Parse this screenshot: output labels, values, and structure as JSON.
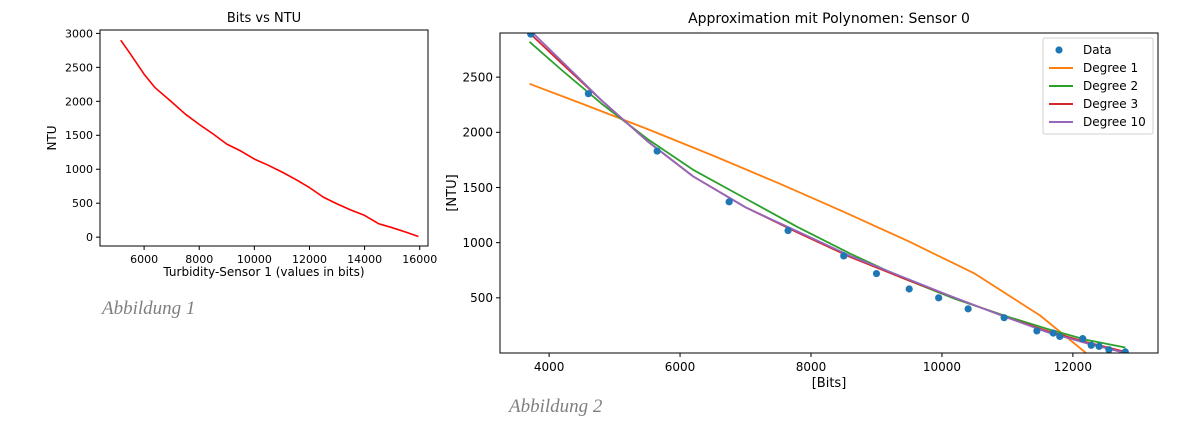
{
  "captions": {
    "fig1": "Abbildung 1",
    "fig2": "Abbildung 2"
  },
  "chart_data": [
    {
      "type": "line",
      "title": "Bits vs NTU",
      "xlabel": "Turbidity-Sensor 1 (values in bits)",
      "ylabel": "NTU",
      "xlim": [
        4400,
        16300
      ],
      "ylim": [
        -130,
        3050
      ],
      "xticks": [
        6000,
        8000,
        10000,
        12000,
        14000,
        16000
      ],
      "yticks": [
        0,
        500,
        1000,
        1500,
        2000,
        2500,
        3000
      ],
      "grid": false,
      "series": [
        {
          "color": "#ff0000",
          "x": [
            5150,
            5500,
            6000,
            6400,
            7000,
            7500,
            8000,
            8500,
            9000,
            9500,
            10000,
            10500,
            11000,
            11500,
            12000,
            12500,
            13000,
            13500,
            14000,
            14500,
            15000,
            15500,
            15950
          ],
          "y": [
            2900,
            2700,
            2400,
            2200,
            1990,
            1810,
            1660,
            1520,
            1370,
            1270,
            1150,
            1060,
            960,
            850,
            730,
            590,
            490,
            400,
            320,
            200,
            140,
            75,
            10
          ]
        }
      ]
    },
    {
      "type": "line",
      "title": "Approximation mit Polynomen: Sensor 0",
      "xlabel": "[Bits]",
      "ylabel": "[NTU]",
      "xlim": [
        3250,
        13300
      ],
      "ylim": [
        0,
        2900
      ],
      "xticks": [
        4000,
        6000,
        8000,
        10000,
        12000
      ],
      "yticks": [
        500,
        1000,
        1500,
        2000,
        2500
      ],
      "grid": false,
      "legend": "top-right",
      "scatter": {
        "name": "Data",
        "color": "#1f77b4",
        "x": [
          3720,
          4600,
          5650,
          6750,
          7650,
          8500,
          9000,
          9500,
          9950,
          10400,
          10950,
          11450,
          11700,
          11800,
          12150,
          12280,
          12400,
          12550,
          12800
        ],
        "y": [
          2890,
          2350,
          1830,
          1370,
          1110,
          880,
          720,
          580,
          500,
          400,
          320,
          200,
          180,
          150,
          130,
          70,
          60,
          30,
          10
        ]
      },
      "series": [
        {
          "name": "Degree 1",
          "color": "#ff7f0e",
          "x": [
            3700,
            4500,
            5500,
            6500,
            7500,
            8500,
            9500,
            10500,
            11500,
            12200
          ],
          "y": [
            2440,
            2260,
            2030,
            1790,
            1540,
            1280,
            1010,
            720,
            340,
            0
          ]
        },
        {
          "name": "Degree 2",
          "color": "#2ca02c",
          "x": [
            3700,
            4200,
            4800,
            5500,
            6200,
            7000,
            7800,
            8600,
            9400,
            10200,
            11000,
            11600,
            12200,
            12800
          ],
          "y": [
            2820,
            2560,
            2260,
            1940,
            1660,
            1400,
            1140,
            900,
            680,
            490,
            330,
            220,
            120,
            50
          ]
        },
        {
          "name": "Degree 3",
          "color": "#d62728",
          "x": [
            3700,
            4200,
            4800,
            5500,
            6200,
            7000,
            7800,
            8600,
            9400,
            10200,
            11000,
            11600,
            12200,
            12800
          ],
          "y": [
            2900,
            2620,
            2290,
            1920,
            1600,
            1320,
            1090,
            870,
            680,
            500,
            320,
            200,
            100,
            10
          ]
        },
        {
          "name": "Degree 10",
          "color": "#9467bd",
          "x": [
            3700,
            4200,
            4800,
            5500,
            6200,
            7000,
            7800,
            8600,
            9400,
            10200,
            11000,
            11600,
            12200,
            12800
          ],
          "y": [
            2930,
            2640,
            2290,
            1920,
            1600,
            1320,
            1100,
            880,
            690,
            500,
            320,
            190,
            90,
            0
          ]
        }
      ]
    }
  ]
}
